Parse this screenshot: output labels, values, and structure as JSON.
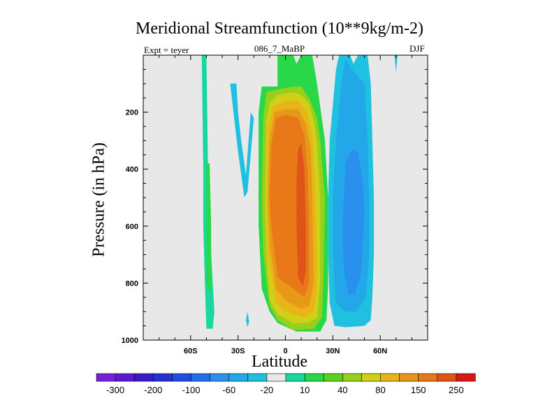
{
  "chart_data": {
    "type": "contour",
    "title": "Meridional Streamfunction (10**9kg/m-2)",
    "left_label": "Expt = teyer",
    "center_label": "086_7_MaBP",
    "right_label": "DJF",
    "xlabel": "Latitude",
    "ylabel": "Pressure (in hPa)",
    "xlim": [
      -90,
      90
    ],
    "ylim": [
      1000,
      0
    ],
    "x_ticks": [
      {
        "value": -60,
        "label": "60S"
      },
      {
        "value": -30,
        "label": "30S"
      },
      {
        "value": 0,
        "label": "0"
      },
      {
        "value": 30,
        "label": "30N"
      },
      {
        "value": 60,
        "label": "60N"
      }
    ],
    "y_ticks": [
      {
        "value": 200,
        "label": "200"
      },
      {
        "value": 400,
        "label": "400"
      },
      {
        "value": 600,
        "label": "600"
      },
      {
        "value": 800,
        "label": "800"
      },
      {
        "value": 1000,
        "label": "1000"
      }
    ],
    "background_color": "#e8e8e8",
    "colorbar": {
      "colors": [
        "#7a1fd8",
        "#5a1ad2",
        "#3a1bcc",
        "#2430d0",
        "#1d4ee0",
        "#2070ec",
        "#2a90ee",
        "#22a8e8",
        "#20c0e0",
        "#e8e8e8",
        "#18d8a0",
        "#28d848",
        "#5ad020",
        "#96d01c",
        "#d0d018",
        "#e8b418",
        "#e89818",
        "#e87818",
        "#e05418",
        "#d81818"
      ],
      "labels": [
        {
          "index": 1,
          "text": "-300"
        },
        {
          "index": 3,
          "text": "-200"
        },
        {
          "index": 5,
          "text": "-100"
        },
        {
          "index": 7,
          "text": "-60"
        },
        {
          "index": 9,
          "text": "-20"
        },
        {
          "index": 11,
          "text": "10"
        },
        {
          "index": 13,
          "text": "40"
        },
        {
          "index": 15,
          "text": "80"
        },
        {
          "index": 17,
          "text": "150"
        },
        {
          "index": 19,
          "text": "250"
        }
      ]
    },
    "regions": [
      {
        "name": "sh-cell-outer",
        "color": "#18d8a0",
        "points": [
          [
            -53,
            0
          ],
          [
            -50,
            0
          ],
          [
            -49,
            400
          ],
          [
            -48,
            600
          ],
          [
            -46,
            800
          ],
          [
            -45,
            900
          ],
          [
            -46,
            960
          ],
          [
            -50,
            960
          ],
          [
            -51,
            800
          ],
          [
            -52,
            600
          ],
          [
            -52,
            400
          ]
        ]
      },
      {
        "name": "sh-cell-inner",
        "color": "#28d848",
        "points": [
          [
            -50,
            380
          ],
          [
            -48,
            380
          ],
          [
            -47,
            600
          ],
          [
            -47,
            800
          ],
          [
            -48,
            840
          ],
          [
            -50,
            800
          ],
          [
            -50,
            600
          ]
        ]
      },
      {
        "name": "sh-weak-neg",
        "color": "#20c0e0",
        "points": [
          [
            -35,
            100
          ],
          [
            -31,
            100
          ],
          [
            -30,
            200
          ],
          [
            -28,
            300
          ],
          [
            -25,
            420
          ],
          [
            -22,
            200
          ],
          [
            -20,
            220
          ],
          [
            -24,
            480
          ],
          [
            -26,
            500
          ],
          [
            -30,
            340
          ]
        ]
      },
      {
        "name": "sh-weak-neg-2",
        "color": "#20c0e0",
        "points": [
          [
            -25,
            930
          ],
          [
            -24,
            900
          ],
          [
            -23,
            935
          ],
          [
            -24,
            955
          ]
        ]
      },
      {
        "name": "hadley-green",
        "color": "#28d848",
        "points": [
          [
            -17,
            200
          ],
          [
            -15,
            110
          ],
          [
            -5,
            110
          ],
          [
            -5,
            0
          ],
          [
            5,
            0
          ],
          [
            7,
            30
          ],
          [
            10,
            0
          ],
          [
            17,
            0
          ],
          [
            20,
            100
          ],
          [
            25,
            300
          ],
          [
            27,
            500
          ],
          [
            27,
            800
          ],
          [
            26,
            930
          ],
          [
            22,
            970
          ],
          [
            7,
            970
          ],
          [
            -5,
            940
          ],
          [
            -10,
            900
          ],
          [
            -15,
            820
          ],
          [
            -17,
            600
          ]
        ]
      },
      {
        "name": "hadley-lime",
        "color": "#96d01c",
        "points": [
          [
            -14,
            220
          ],
          [
            -12,
            130
          ],
          [
            -5,
            120
          ],
          [
            5,
            110
          ],
          [
            10,
            110
          ],
          [
            15,
            150
          ],
          [
            20,
            220
          ],
          [
            22,
            300
          ],
          [
            25,
            500
          ],
          [
            24,
            800
          ],
          [
            23,
            920
          ],
          [
            18,
            960
          ],
          [
            5,
            965
          ],
          [
            -5,
            930
          ],
          [
            -10,
            880
          ],
          [
            -14,
            700
          ],
          [
            -15,
            500
          ]
        ]
      },
      {
        "name": "hadley-yellow",
        "color": "#d0d018",
        "points": [
          [
            -12,
            230
          ],
          [
            -10,
            170
          ],
          [
            -5,
            140
          ],
          [
            5,
            130
          ],
          [
            10,
            140
          ],
          [
            15,
            170
          ],
          [
            18,
            230
          ],
          [
            20,
            300
          ],
          [
            22,
            500
          ],
          [
            22,
            800
          ],
          [
            20,
            920
          ],
          [
            15,
            940
          ],
          [
            5,
            940
          ],
          [
            -5,
            910
          ],
          [
            -10,
            860
          ],
          [
            -12,
            700
          ],
          [
            -13,
            500
          ]
        ]
      },
      {
        "name": "hadley-gold",
        "color": "#e8b418",
        "points": [
          [
            -11,
            250
          ],
          [
            -8,
            180
          ],
          [
            0,
            160
          ],
          [
            8,
            160
          ],
          [
            14,
            200
          ],
          [
            17,
            280
          ],
          [
            19,
            500
          ],
          [
            20,
            800
          ],
          [
            18,
            900
          ],
          [
            12,
            920
          ],
          [
            0,
            900
          ],
          [
            -6,
            870
          ],
          [
            -11,
            700
          ],
          [
            -12,
            500
          ]
        ]
      },
      {
        "name": "hadley-orange",
        "color": "#e89818",
        "points": [
          [
            -10,
            300
          ],
          [
            -7,
            200
          ],
          [
            0,
            190
          ],
          [
            8,
            190
          ],
          [
            13,
            240
          ],
          [
            16,
            330
          ],
          [
            17,
            500
          ],
          [
            18,
            800
          ],
          [
            15,
            880
          ],
          [
            10,
            890
          ],
          [
            0,
            860
          ],
          [
            -6,
            820
          ],
          [
            -10,
            660
          ],
          [
            -11,
            500
          ]
        ]
      },
      {
        "name": "hadley-dark-orange",
        "color": "#e87818",
        "points": [
          [
            -9,
            320
          ],
          [
            -6,
            220
          ],
          [
            0,
            210
          ],
          [
            8,
            220
          ],
          [
            12,
            280
          ],
          [
            14,
            400
          ],
          [
            15,
            600
          ],
          [
            15,
            800
          ],
          [
            12,
            850
          ],
          [
            5,
            820
          ],
          [
            -5,
            780
          ],
          [
            -9,
            600
          ],
          [
            -10,
            500
          ]
        ]
      },
      {
        "name": "hadley-red-orange",
        "color": "#e05418",
        "points": [
          [
            8,
            330
          ],
          [
            10,
            310
          ],
          [
            12,
            400
          ],
          [
            13,
            600
          ],
          [
            13,
            760
          ],
          [
            11,
            810
          ],
          [
            8,
            780
          ],
          [
            7,
            600
          ],
          [
            7,
            450
          ]
        ]
      },
      {
        "name": "nh-cell-outer",
        "color": "#20c0e0",
        "points": [
          [
            32,
            50
          ],
          [
            34,
            0
          ],
          [
            41,
            0
          ],
          [
            43,
            30
          ],
          [
            46,
            0
          ],
          [
            52,
            0
          ],
          [
            54,
            100
          ],
          [
            55,
            300
          ],
          [
            56,
            500
          ],
          [
            56,
            700
          ],
          [
            55,
            850
          ],
          [
            54,
            930
          ],
          [
            50,
            950
          ],
          [
            38,
            955
          ],
          [
            31,
            950
          ],
          [
            28,
            870
          ],
          [
            27,
            700
          ],
          [
            27,
            500
          ],
          [
            28,
            300
          ]
        ]
      },
      {
        "name": "nh-cell-spike",
        "color": "#20c0e0",
        "points": [
          [
            69,
            0
          ],
          [
            71,
            0
          ],
          [
            70,
            60
          ]
        ]
      },
      {
        "name": "nh-cell-mid",
        "color": "#22a8e8",
        "points": [
          [
            35,
            120
          ],
          [
            38,
            10
          ],
          [
            42,
            50
          ],
          [
            50,
            100
          ],
          [
            52,
            300
          ],
          [
            53,
            500
          ],
          [
            53,
            700
          ],
          [
            51,
            850
          ],
          [
            45,
            900
          ],
          [
            38,
            900
          ],
          [
            32,
            870
          ],
          [
            30,
            700
          ],
          [
            30,
            500
          ],
          [
            32,
            300
          ]
        ]
      },
      {
        "name": "nh-cell-inner",
        "color": "#2a90ee",
        "points": [
          [
            38,
            380
          ],
          [
            42,
            330
          ],
          [
            46,
            340
          ],
          [
            49,
            450
          ],
          [
            50,
            550
          ],
          [
            48,
            760
          ],
          [
            44,
            840
          ],
          [
            40,
            840
          ],
          [
            37,
            760
          ],
          [
            36,
            600
          ],
          [
            37,
            500
          ]
        ]
      }
    ]
  }
}
